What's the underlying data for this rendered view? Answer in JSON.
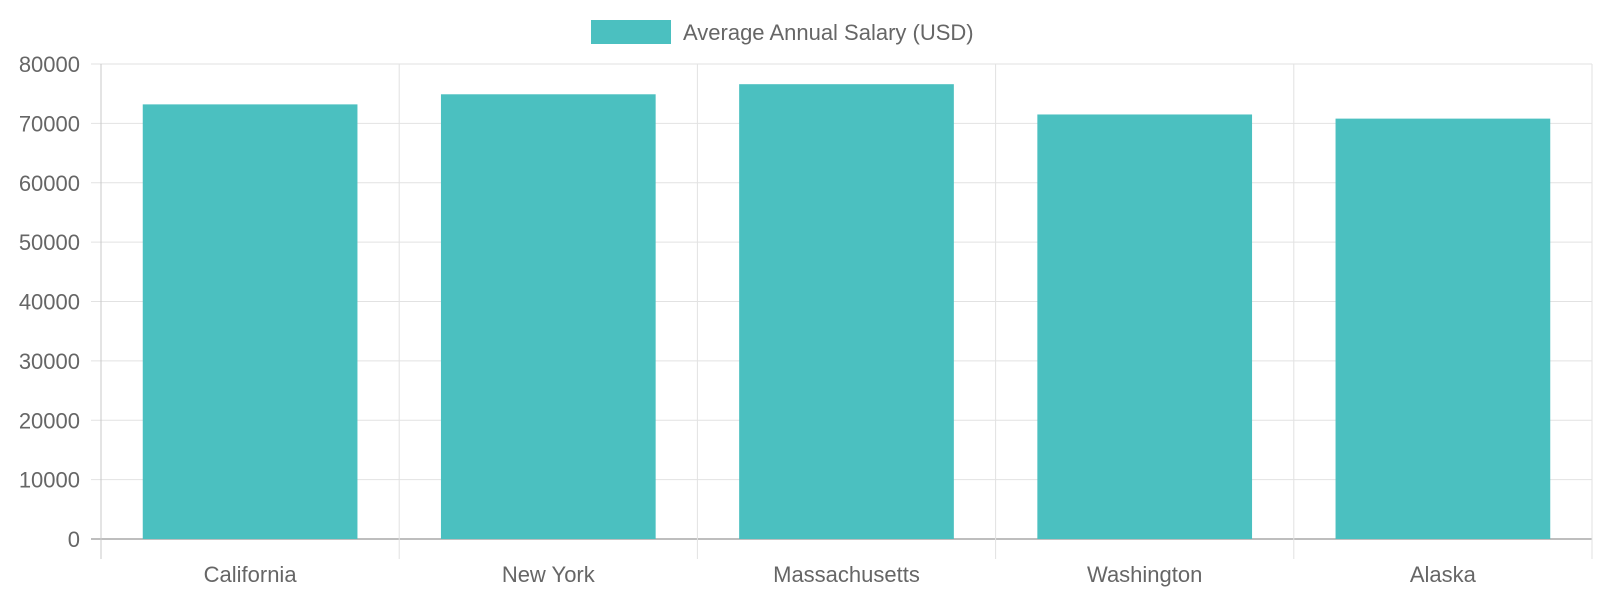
{
  "chart_data": {
    "type": "bar",
    "categories": [
      "California",
      "New York",
      "Massachusetts",
      "Washington",
      "Alaska"
    ],
    "series": [
      {
        "name": "Average Annual Salary (USD)",
        "values": [
          73200,
          74900,
          76600,
          71500,
          70800
        ],
        "color": "#4bc0c0"
      }
    ],
    "y_ticks": [
      "0",
      "10000",
      "20000",
      "30000",
      "40000",
      "50000",
      "60000",
      "70000",
      "80000"
    ],
    "ylim": [
      0,
      80000
    ],
    "grid": true,
    "legend_position": "top-center"
  }
}
